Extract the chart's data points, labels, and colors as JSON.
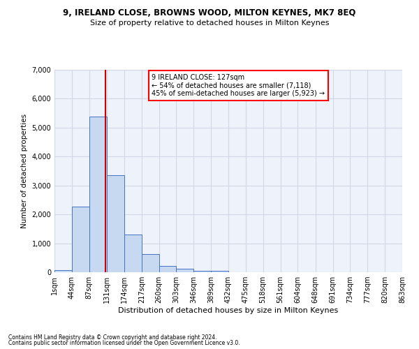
{
  "title1": "9, IRELAND CLOSE, BROWNS WOOD, MILTON KEYNES, MK7 8EQ",
  "title2": "Size of property relative to detached houses in Milton Keynes",
  "xlabel": "Distribution of detached houses by size in Milton Keynes",
  "ylabel": "Number of detached properties",
  "footnote1": "Contains HM Land Registry data © Crown copyright and database right 2024.",
  "footnote2": "Contains public sector information licensed under the Open Government Licence v3.0.",
  "annotation_line1": "9 IRELAND CLOSE: 127sqm",
  "annotation_line2": "← 54% of detached houses are smaller (7,118)",
  "annotation_line3": "45% of semi-detached houses are larger (5,923) →",
  "property_size": 127,
  "bin_edges": [
    1,
    44,
    87,
    131,
    174,
    217,
    260,
    303,
    346,
    389,
    432,
    475,
    518,
    561,
    604,
    648,
    691,
    734,
    777,
    820,
    863
  ],
  "bar_heights": [
    75,
    2270,
    5380,
    3350,
    1310,
    620,
    215,
    110,
    60,
    60,
    0,
    0,
    0,
    0,
    0,
    0,
    0,
    0,
    0,
    0
  ],
  "bar_color": "#c6d9f0",
  "bar_edge_color": "#4472c4",
  "line_color": "#cc0000",
  "grid_color": "#d0d8e8",
  "background_color": "#eef2fb",
  "ylim": [
    0,
    7000
  ],
  "yticks": [
    0,
    1000,
    2000,
    3000,
    4000,
    5000,
    6000,
    7000
  ]
}
